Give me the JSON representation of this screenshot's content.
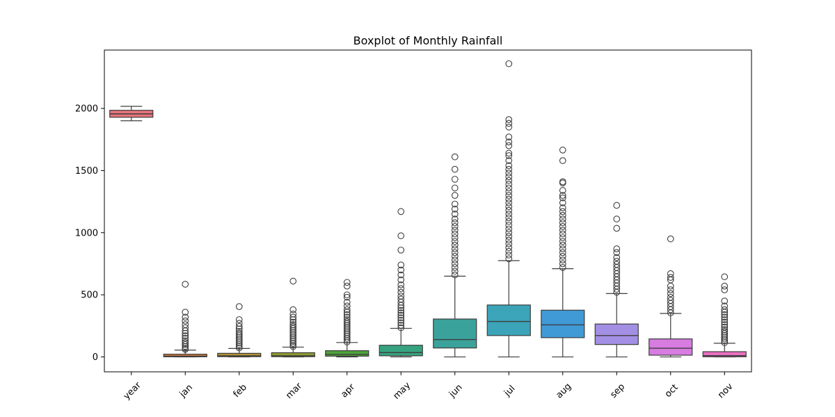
{
  "chart_data": {
    "type": "box",
    "title": "Boxplot of Monthly Rainfall",
    "xlabel": "",
    "ylabel": "",
    "ylim": [
      -120,
      2470
    ],
    "yticks": [
      0,
      500,
      1000,
      1500,
      2000
    ],
    "grid": false,
    "categories": [
      "year",
      "jan",
      "feb",
      "mar",
      "apr",
      "may",
      "jun",
      "jul",
      "aug",
      "sep",
      "oct",
      "nov"
    ],
    "boxes": [
      {
        "min": 1901,
        "q1": 1929,
        "median": 1956,
        "q3": 1985,
        "max": 2017,
        "color": "#e8747c",
        "outliers": []
      },
      {
        "min": 0,
        "q1": 1,
        "median": 6,
        "q3": 22,
        "max": 55,
        "color": "#dc7f3c",
        "outliers": [
          60,
          70,
          85,
          100,
          115,
          130,
          150,
          170,
          190,
          210,
          235,
          260,
          290,
          320,
          360,
          585
        ]
      },
      {
        "min": 0,
        "q1": 2,
        "median": 9,
        "q3": 29,
        "max": 68,
        "color": "#b39330",
        "outliers": [
          72,
          85,
          100,
          115,
          130,
          145,
          160,
          175,
          190,
          205,
          225,
          245,
          270,
          300,
          405
        ]
      },
      {
        "min": 0,
        "q1": 2,
        "median": 9,
        "q3": 34,
        "max": 79,
        "color": "#8e9b2f",
        "outliers": [
          83,
          95,
          110,
          125,
          140,
          155,
          170,
          185,
          200,
          215,
          230,
          245,
          260,
          280,
          300,
          320,
          345,
          380,
          610
        ]
      },
      {
        "min": 0,
        "q1": 6,
        "median": 20,
        "q3": 50,
        "max": 116,
        "color": "#4ea43c",
        "outliers": [
          120,
          135,
          150,
          165,
          180,
          195,
          210,
          225,
          240,
          255,
          270,
          285,
          300,
          320,
          340,
          360,
          380,
          410,
          440,
          480,
          500,
          570,
          600
        ]
      },
      {
        "min": 0,
        "q1": 9,
        "median": 35,
        "q3": 94,
        "max": 230,
        "color": "#36a380",
        "outliers": [
          235,
          255,
          275,
          295,
          315,
          335,
          355,
          375,
          395,
          415,
          440,
          465,
          490,
          520,
          550,
          580,
          620,
          660,
          700,
          740,
          860,
          975,
          1170
        ]
      },
      {
        "min": 0,
        "q1": 72,
        "median": 140,
        "q3": 305,
        "max": 650,
        "color": "#3aa29a",
        "outliers": [
          660,
          690,
          720,
          750,
          780,
          810,
          840,
          870,
          900,
          930,
          960,
          990,
          1020,
          1050,
          1080,
          1110,
          1150,
          1190,
          1230,
          1300,
          1360,
          1430,
          1510,
          1610
        ]
      },
      {
        "min": 0,
        "q1": 172,
        "median": 285,
        "q3": 418,
        "max": 775,
        "color": "#3ba4b8",
        "outliers": [
          790,
          820,
          850,
          880,
          910,
          940,
          970,
          1000,
          1030,
          1060,
          1090,
          1120,
          1150,
          1180,
          1210,
          1240,
          1270,
          1300,
          1330,
          1360,
          1390,
          1420,
          1450,
          1480,
          1510,
          1540,
          1580,
          1620,
          1640,
          1700,
          1730,
          1770,
          1850,
          1880,
          1910,
          2360
        ]
      },
      {
        "min": 0,
        "q1": 155,
        "median": 258,
        "q3": 376,
        "max": 710,
        "color": "#3f9ad6",
        "outliers": [
          720,
          750,
          780,
          810,
          840,
          870,
          900,
          930,
          960,
          990,
          1020,
          1050,
          1080,
          1110,
          1140,
          1170,
          1200,
          1240,
          1280,
          1300,
          1340,
          1400,
          1410,
          1580,
          1665
        ]
      },
      {
        "min": 0,
        "q1": 100,
        "median": 172,
        "q3": 265,
        "max": 510,
        "color": "#a38fe4",
        "outliers": [
          520,
          545,
          570,
          595,
          620,
          645,
          670,
          695,
          720,
          745,
          770,
          800,
          840,
          870,
          1035,
          1110,
          1220
        ]
      },
      {
        "min": 0,
        "q1": 14,
        "median": 70,
        "q3": 145,
        "max": 350,
        "color": "#d77ce0",
        "outliers": [
          355,
          380,
          405,
          430,
          455,
          480,
          510,
          540,
          570,
          620,
          640,
          670,
          950
        ]
      },
      {
        "min": 0,
        "q1": 1,
        "median": 10,
        "q3": 42,
        "max": 110,
        "color": "#ea70c0",
        "outliers": [
          115,
          130,
          145,
          160,
          175,
          190,
          205,
          220,
          240,
          260,
          280,
          300,
          320,
          340,
          360,
          380,
          410,
          450,
          540,
          570,
          645
        ]
      }
    ]
  }
}
